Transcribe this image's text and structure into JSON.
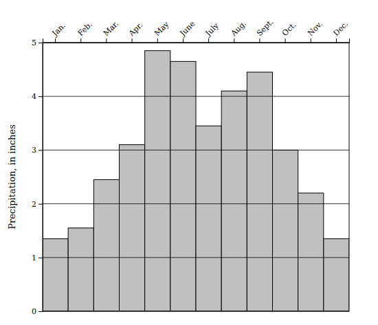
{
  "chart_data": {
    "type": "bar",
    "categories": [
      "Jan.",
      "Feb.",
      "Mar.",
      "Apr.",
      "May",
      "June",
      "July",
      "Aug.",
      "Sept.",
      "Oct.",
      "Nov.",
      "Dec."
    ],
    "values": [
      1.35,
      1.55,
      2.45,
      3.1,
      4.85,
      4.65,
      3.45,
      4.1,
      4.45,
      3.0,
      2.2,
      1.35
    ],
    "color": "#c0c0c0",
    "ylabel": "Precipitation, in inches",
    "ylim": [
      0,
      5
    ],
    "yticks": [
      0,
      1,
      2,
      3,
      4,
      5
    ],
    "grid": true
  }
}
